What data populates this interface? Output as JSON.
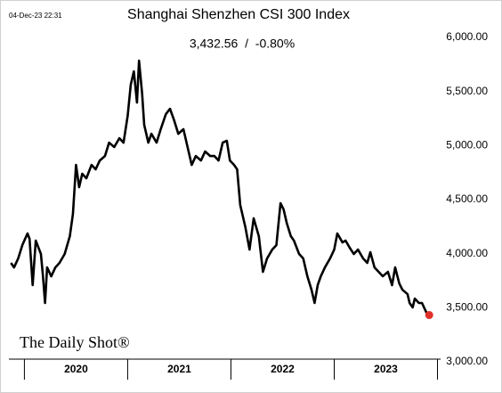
{
  "chart_data": {
    "type": "line",
    "timestamp": "04-Dec-23 22:31",
    "title": "Shanghai Shenzhen CSI 300 Index",
    "subtitle": "3,432.56  /  -0.80%",
    "watermark": "The Daily Shot®",
    "color": "#000000",
    "last_marker_color": "#e0302a",
    "x": [
      2019.87,
      2019.9,
      2019.94,
      2019.98,
      2020.03,
      2020.05,
      2020.08,
      2020.11,
      2020.16,
      2020.18,
      2020.2,
      2020.22,
      2020.26,
      2020.3,
      2020.34,
      2020.39,
      2020.44,
      2020.47,
      2020.5,
      2020.53,
      2020.56,
      2020.6,
      2020.65,
      2020.69,
      2020.73,
      2020.78,
      2020.82,
      2020.87,
      2020.92,
      2020.96,
      2021.0,
      2021.03,
      2021.06,
      2021.09,
      2021.11,
      2021.14,
      2021.16,
      2021.2,
      2021.23,
      2021.28,
      2021.32,
      2021.37,
      2021.41,
      2021.45,
      2021.49,
      2021.54,
      2021.59,
      2021.62,
      2021.66,
      2021.71,
      2021.75,
      2021.8,
      2021.84,
      2021.88,
      2021.92,
      2021.96,
      2021.99,
      2022.03,
      2022.06,
      2022.09,
      2022.14,
      2022.18,
      2022.22,
      2022.27,
      2022.31,
      2022.35,
      2022.4,
      2022.44,
      2022.48,
      2022.51,
      2022.54,
      2022.58,
      2022.61,
      2022.66,
      2022.7,
      2022.74,
      2022.78,
      2022.81,
      2022.84,
      2022.87,
      2022.91,
      2022.96,
      2023.0,
      2023.03,
      2023.08,
      2023.11,
      2023.15,
      2023.19,
      2023.23,
      2023.28,
      2023.32,
      2023.35,
      2023.39,
      2023.43,
      2023.47,
      2023.52,
      2023.56,
      2023.59,
      2023.63,
      2023.66,
      2023.71,
      2023.73,
      2023.76,
      2023.78,
      2023.82,
      2023.85,
      2023.89,
      2023.92
    ],
    "values": [
      3915,
      3873,
      3956,
      4079,
      4187,
      4137,
      3709,
      4121,
      3997,
      3791,
      3544,
      3873,
      3791,
      3873,
      3915,
      3997,
      4162,
      4368,
      4821,
      4615,
      4739,
      4697,
      4821,
      4780,
      4862,
      4903,
      5027,
      4986,
      5068,
      5027,
      5274,
      5563,
      5686,
      5398,
      5785,
      5480,
      5192,
      5027,
      5109,
      5027,
      5151,
      5291,
      5340,
      5233,
      5109,
      5151,
      4945,
      4821,
      4903,
      4862,
      4945,
      4903,
      4903,
      4862,
      5027,
      5044,
      4862,
      4821,
      4780,
      4450,
      4244,
      4038,
      4327,
      4162,
      3832,
      3956,
      4038,
      4079,
      4467,
      4409,
      4285,
      4162,
      4121,
      3997,
      3956,
      3791,
      3667,
      3544,
      3709,
      3791,
      3873,
      3956,
      4038,
      4187,
      4104,
      4121,
      4055,
      3997,
      4038,
      3956,
      3915,
      4014,
      3873,
      3832,
      3791,
      3832,
      3709,
      3873,
      3725,
      3667,
      3626,
      3544,
      3503,
      3585,
      3544,
      3544,
      3461,
      3432.56
    ],
    "xlim": [
      2019.85,
      2024.03
    ],
    "ylim": [
      3000,
      6000
    ],
    "yticks": [
      {
        "value": 3000,
        "label": "3,000.00"
      },
      {
        "value": 3500,
        "label": "3,500.00"
      },
      {
        "value": 4000,
        "label": "4,000.00"
      },
      {
        "value": 4500,
        "label": "4,500.00"
      },
      {
        "value": 5000,
        "label": "5,000.00"
      },
      {
        "value": 5500,
        "label": "5,500.00"
      },
      {
        "value": 6000,
        "label": "6,000.00"
      }
    ],
    "xdividers": [
      2020,
      2021,
      2022,
      2023,
      2024
    ],
    "xticks": [
      {
        "value": 2020.5,
        "label": "2020"
      },
      {
        "value": 2021.5,
        "label": "2021"
      },
      {
        "value": 2022.5,
        "label": "2022"
      },
      {
        "value": 2023.5,
        "label": "2023"
      }
    ]
  }
}
